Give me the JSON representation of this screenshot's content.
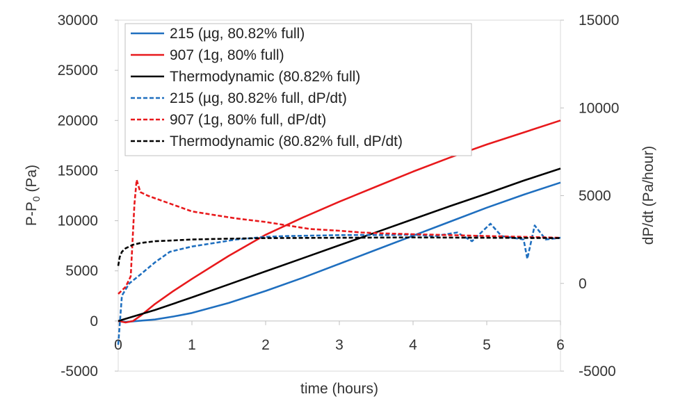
{
  "chart_data": {
    "type": "line",
    "x_axis": {
      "label": "time (hours)",
      "range": [
        0,
        6
      ],
      "ticks": [
        "0",
        "1",
        "2",
        "3",
        "4",
        "5",
        "6"
      ]
    },
    "y_left": {
      "label": "P-P0 (Pa)",
      "label_main": "P-P",
      "label_sub": "0",
      "label_unit": " (Pa)",
      "range": [
        -5000,
        30000
      ],
      "ticks": [
        "-5000",
        "0",
        "5000",
        "10000",
        "15000",
        "20000",
        "25000",
        "30000"
      ]
    },
    "y_right": {
      "label": "dP/dt (Pa/hour)",
      "range": [
        -5000,
        15000
      ],
      "ticks": [
        "-5000",
        "0",
        "5000",
        "10000",
        "15000"
      ]
    },
    "grid": false,
    "legend_position": "top-left",
    "series": [
      {
        "name": "215 (µg, 80.82% full)",
        "color": "#1f6fbf",
        "dash": "solid",
        "axis": "left",
        "x": [
          0,
          0.1,
          0.25,
          0.5,
          0.75,
          1,
          1.5,
          2,
          2.5,
          3,
          3.5,
          4,
          4.5,
          5,
          5.5,
          6
        ],
        "y": [
          0,
          -100,
          0,
          150,
          450,
          800,
          1800,
          3000,
          4300,
          5700,
          7100,
          8500,
          9900,
          11300,
          12600,
          13800
        ]
      },
      {
        "name": "907 (1g, 80% full)",
        "color": "#e8191c",
        "dash": "solid",
        "axis": "left",
        "x": [
          0,
          0.1,
          0.2,
          0.3,
          0.5,
          0.75,
          1,
          1.5,
          2,
          2.5,
          3,
          3.5,
          4,
          4.5,
          5,
          5.5,
          6
        ],
        "y": [
          0,
          -150,
          0,
          500,
          1700,
          3000,
          4200,
          6500,
          8600,
          10300,
          11900,
          13400,
          14900,
          16300,
          17600,
          18800,
          20000
        ]
      },
      {
        "name": "Thermodynamic (80.82% full)",
        "color": "#000000",
        "dash": "solid",
        "axis": "left",
        "x": [
          0,
          0.5,
          1,
          1.5,
          2,
          2.5,
          3,
          3.5,
          4,
          4.5,
          5,
          5.5,
          6
        ],
        "y": [
          0,
          1100,
          2350,
          3650,
          4950,
          6250,
          7550,
          8850,
          10150,
          11450,
          12700,
          14000,
          15200
        ]
      },
      {
        "name": "215 (µg, 80.82% full, dP/dt)",
        "color": "#1f6fbf",
        "dash": "dashed",
        "axis": "right",
        "x": [
          0,
          0.05,
          0.15,
          0.3,
          0.5,
          0.7,
          1,
          1.3,
          1.6,
          2,
          2.3,
          2.6,
          3,
          3.3,
          3.6,
          4,
          4.3,
          4.6,
          4.8,
          5.05,
          5.2,
          5.5,
          5.55,
          5.65,
          5.8,
          6
        ],
        "y": [
          -3500,
          -700,
          0,
          500,
          1200,
          1800,
          2100,
          2300,
          2500,
          2650,
          2700,
          2720,
          2750,
          2760,
          2750,
          2780,
          2700,
          2900,
          2400,
          3400,
          2700,
          2500,
          1400,
          3300,
          2500,
          2600
        ]
      },
      {
        "name": "907 (1g, 80% full, dP/dt)",
        "color": "#e8191c",
        "dash": "dashed",
        "axis": "right",
        "x": [
          0,
          0.1,
          0.17,
          0.22,
          0.25,
          0.3,
          0.4,
          0.6,
          0.8,
          1,
          1.3,
          1.6,
          2,
          2.3,
          2.6,
          3,
          3.3,
          3.6,
          4,
          4.5,
          5,
          5.5,
          6
        ],
        "y": [
          -600,
          -200,
          400,
          4500,
          5900,
          5200,
          5000,
          4700,
          4400,
          4100,
          3900,
          3700,
          3500,
          3300,
          3100,
          3000,
          2900,
          2850,
          2800,
          2750,
          2700,
          2650,
          2600
        ]
      },
      {
        "name": "Thermodynamic (80.82% full, dP/dt)",
        "color": "#000000",
        "dash": "dashed",
        "axis": "right",
        "x": [
          0,
          0.02,
          0.05,
          0.1,
          0.2,
          0.3,
          0.5,
          0.75,
          1,
          1.5,
          2,
          3,
          4,
          5,
          6
        ],
        "y": [
          1000,
          1500,
          1800,
          2000,
          2200,
          2300,
          2400,
          2450,
          2500,
          2550,
          2580,
          2600,
          2620,
          2600,
          2580
        ]
      }
    ]
  }
}
